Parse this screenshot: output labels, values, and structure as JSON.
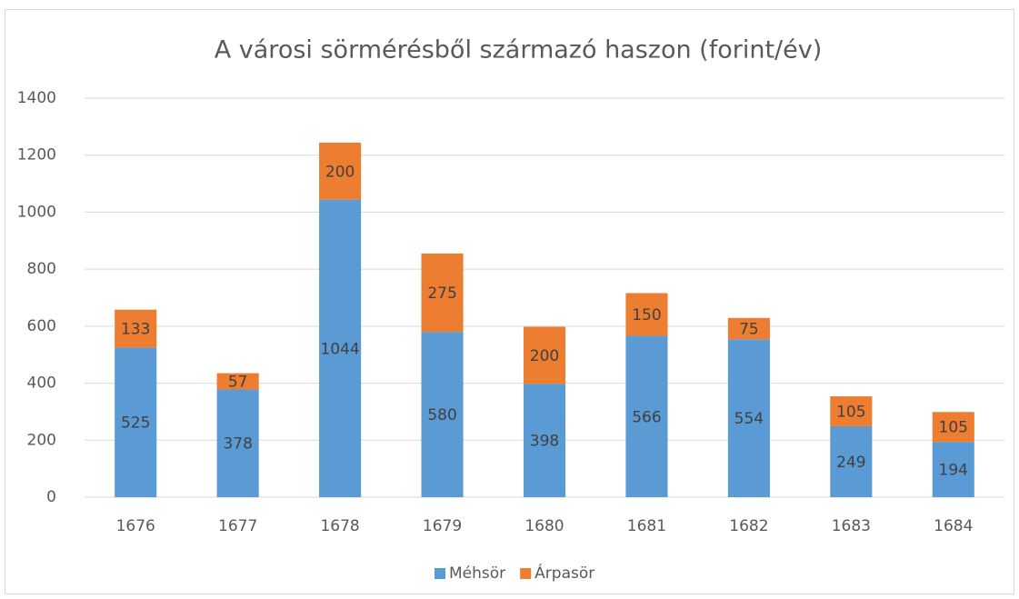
{
  "chart_data": {
    "type": "bar",
    "stacked": true,
    "title": "A városi sörmérésből származó haszon (forint/év)",
    "categories": [
      "1676",
      "1677",
      "1678",
      "1679",
      "1680",
      "1681",
      "1682",
      "1683",
      "1684"
    ],
    "series": [
      {
        "name": "Méhsör",
        "color": "#5b9bd5",
        "values": [
          525,
          378,
          1044,
          580,
          398,
          566,
          554,
          249,
          194
        ]
      },
      {
        "name": "Árpasör",
        "color": "#ed7d31",
        "values": [
          133,
          57,
          200,
          275,
          200,
          150,
          75,
          105,
          105
        ]
      }
    ],
    "ylim": [
      0,
      1400
    ],
    "yticks": [
      0,
      200,
      400,
      600,
      800,
      1000,
      1200,
      1400
    ],
    "grid": true,
    "legend": "bottom"
  }
}
